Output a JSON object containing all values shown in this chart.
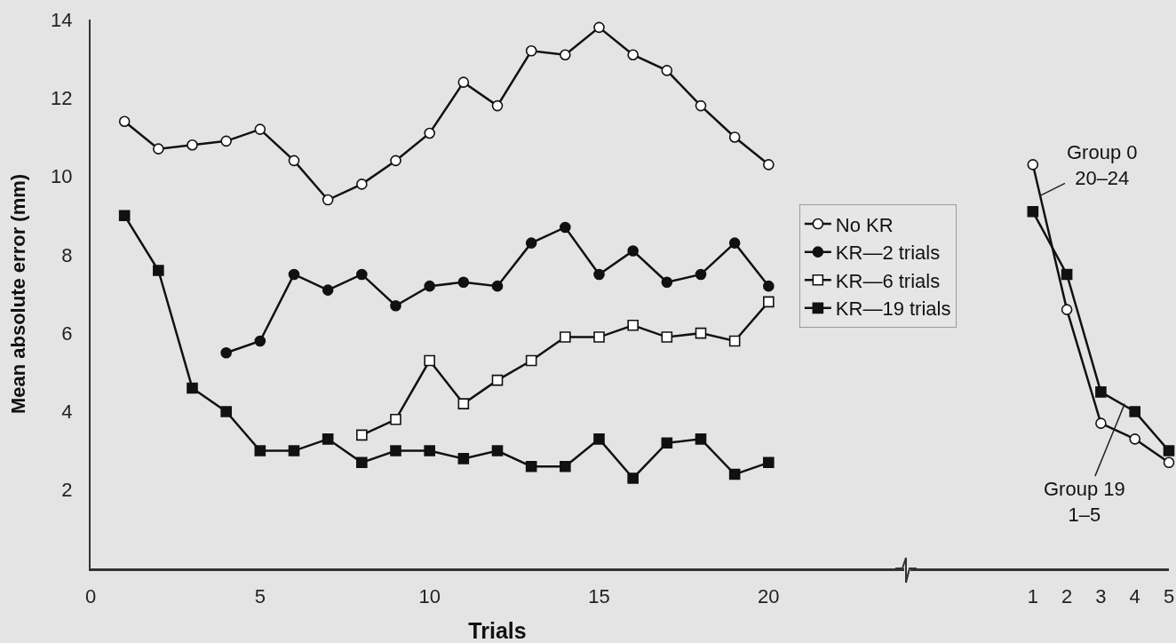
{
  "chart_data": [
    {
      "type": "line",
      "xlabel": "Trials",
      "ylabel": "Mean absolute error (mm)",
      "xlim": [
        0,
        24
      ],
      "xticks": [
        0,
        5,
        10,
        15,
        20
      ],
      "ylim": [
        0,
        14
      ],
      "yticks": [
        2,
        4,
        6,
        8,
        10,
        12,
        14
      ],
      "grid": false,
      "legend": "right",
      "series": [
        {
          "name": "No KR",
          "color": "#ffffff",
          "marker": "circle",
          "x": [
            1,
            2,
            3,
            4,
            5,
            6,
            7,
            8,
            9,
            10,
            11,
            12,
            13,
            14,
            15,
            16,
            17,
            18,
            19,
            20
          ],
          "values": [
            11.4,
            10.7,
            10.8,
            10.9,
            11.2,
            10.4,
            9.4,
            9.8,
            10.4,
            11.1,
            12.4,
            11.8,
            13.2,
            13.1,
            13.8,
            13.1,
            12.7,
            11.8,
            11.0,
            10.3
          ]
        },
        {
          "name": "KR—2 trials",
          "color": "#111111",
          "marker": "circle",
          "x": [
            4,
            5,
            6,
            7,
            8,
            9,
            10,
            11,
            12,
            13,
            14,
            15,
            16,
            17,
            18,
            19,
            20
          ],
          "values": [
            5.5,
            5.8,
            7.5,
            7.1,
            7.5,
            6.7,
            7.2,
            7.3,
            7.2,
            8.3,
            8.7,
            7.5,
            8.1,
            7.3,
            7.5,
            8.3,
            7.2
          ]
        },
        {
          "name": "KR—6 trials",
          "color": "#ffffff",
          "marker": "square",
          "x": [
            8,
            9,
            10,
            11,
            12,
            13,
            14,
            15,
            16,
            17,
            18,
            19,
            20
          ],
          "values": [
            3.4,
            3.8,
            5.3,
            4.2,
            4.8,
            5.3,
            5.9,
            5.9,
            6.2,
            5.9,
            6.0,
            5.8,
            6.8
          ]
        },
        {
          "name": "KR—19 trials",
          "color": "#111111",
          "marker": "square",
          "x": [
            1,
            2,
            3,
            4,
            5,
            6,
            7,
            8,
            9,
            10,
            11,
            12,
            13,
            14,
            15,
            16,
            17,
            18,
            19,
            20
          ],
          "values": [
            9.0,
            7.6,
            4.6,
            4.0,
            3.0,
            3.0,
            3.3,
            2.7,
            3.0,
            3.0,
            2.8,
            3.0,
            2.6,
            2.6,
            3.3,
            2.3,
            3.2,
            3.3,
            2.4,
            2.7
          ]
        }
      ]
    },
    {
      "type": "line",
      "xlim": [
        -2.6,
        5
      ],
      "xticks": [
        1,
        2,
        3,
        4,
        5
      ],
      "ylim": [
        0,
        14
      ],
      "grid": false,
      "tick_labels": "x",
      "annotations": [
        {
          "text": "Group 0\n20–24",
          "x": 1.2,
          "y": 9.5
        },
        {
          "text": "Group 19\n1–5",
          "x": 3.7,
          "y": 4.2
        }
      ],
      "series": [
        {
          "color": "#ffffff",
          "marker": "circle",
          "x": [
            1,
            2,
            3,
            4,
            5
          ],
          "values": [
            10.3,
            6.6,
            3.7,
            3.3,
            2.7
          ]
        },
        {
          "color": "#111111",
          "marker": "square",
          "x": [
            1,
            2,
            3,
            4,
            5
          ],
          "values": [
            9.1,
            7.5,
            4.5,
            4.0,
            3.0
          ]
        }
      ]
    }
  ]
}
